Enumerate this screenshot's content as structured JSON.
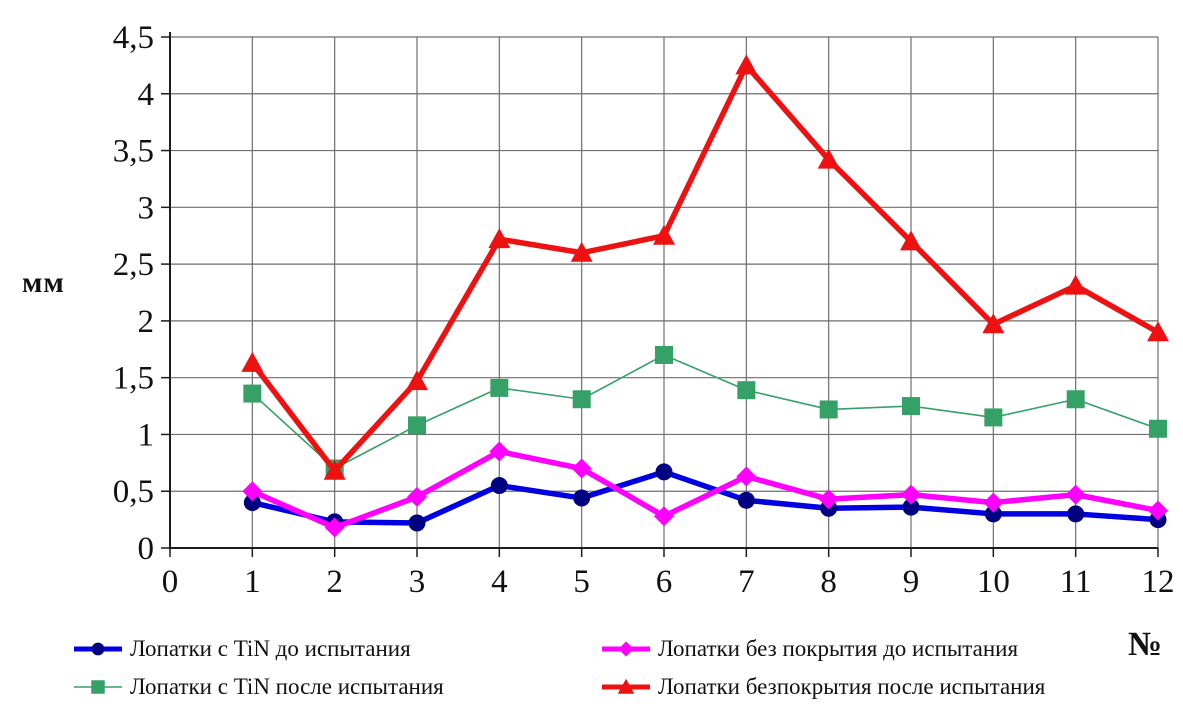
{
  "labels": {
    "y_unit": "мм",
    "x_unit": "№"
  },
  "colors": {
    "grid": "#6e6e6e",
    "axis": "#1c1c1c",
    "text": "#111111",
    "background": "#ffffff"
  },
  "chart_data": {
    "type": "line",
    "title": "",
    "xlabel": "№",
    "ylabel": "мм",
    "xlim": [
      0,
      12
    ],
    "ylim": [
      0,
      4.5
    ],
    "grid": true,
    "legend_position": "bottom",
    "x_ticks": [
      0,
      1,
      2,
      3,
      4,
      5,
      6,
      7,
      8,
      9,
      10,
      11,
      12
    ],
    "x_tick_labels": [
      "0",
      "1",
      "2",
      "3",
      "4",
      "5",
      "6",
      "7",
      "8",
      "9",
      "10",
      "11",
      "12"
    ],
    "y_ticks": [
      0,
      0.5,
      1,
      1.5,
      2,
      2.5,
      3,
      3.5,
      4,
      4.5
    ],
    "y_tick_labels": [
      "0",
      "0,5",
      "1",
      "1,5",
      "2",
      "2,5",
      "3",
      "3,5",
      "4",
      "4,5"
    ],
    "x": [
      1,
      2,
      3,
      4,
      5,
      6,
      7,
      8,
      9,
      10,
      11,
      12
    ],
    "series": [
      {
        "name": "Лопатки с TiN до испытания",
        "color": "#0000e0",
        "marker_color": "#000080",
        "marker": "circle",
        "line_width": 5.5,
        "values": [
          0.4,
          0.23,
          0.22,
          0.55,
          0.44,
          0.67,
          0.42,
          0.35,
          0.36,
          0.3,
          0.3,
          0.25
        ]
      },
      {
        "name": "Лопатки с TiN после испытания",
        "color": "#36a167",
        "marker_color": "#36a167",
        "marker": "square",
        "line_width": 1.6,
        "values": [
          1.36,
          0.7,
          1.08,
          1.41,
          1.31,
          1.7,
          1.39,
          1.22,
          1.25,
          1.15,
          1.31,
          1.05
        ]
      },
      {
        "name": "Лопатки без покрытия до испытания",
        "color": "#ff00ff",
        "marker_color": "#ff00ff",
        "marker": "diamond",
        "line_width": 5.5,
        "values": [
          0.5,
          0.18,
          0.45,
          0.85,
          0.7,
          0.28,
          0.63,
          0.43,
          0.47,
          0.4,
          0.47,
          0.33
        ]
      },
      {
        "name": "Лопатки безпокрытия после испытания",
        "color": "#ee1111",
        "marker_color": "#ee1111",
        "marker": "triangle",
        "line_width": 5.5,
        "values": [
          1.63,
          0.68,
          1.47,
          2.72,
          2.6,
          2.75,
          4.25,
          3.42,
          2.7,
          1.97,
          2.31,
          1.9
        ]
      }
    ]
  }
}
